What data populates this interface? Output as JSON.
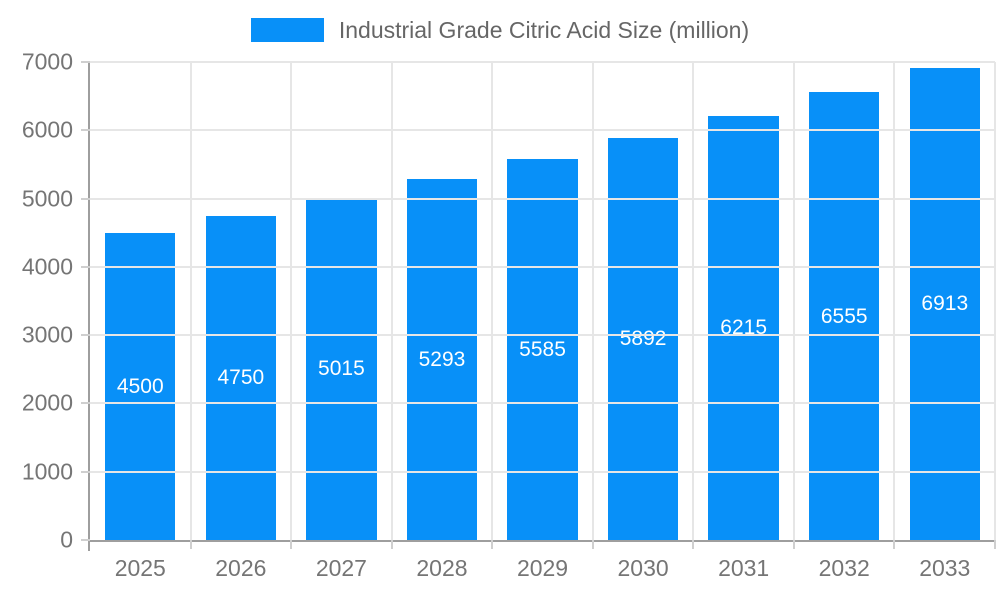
{
  "legend": {
    "label": "Industrial Grade Citric Acid Size (million)"
  },
  "colors": {
    "bar": "#0890f8",
    "bar_label": "#ffffff",
    "grid": "#e6e6e6",
    "axis": "#9e9e9e",
    "tick": "#cfcfcf",
    "tick_label": "#757575",
    "legend_text": "#666666"
  },
  "chart_data": {
    "type": "bar",
    "title": "Industrial Grade Citric Acid Size (million)",
    "categories": [
      "2025",
      "2026",
      "2027",
      "2028",
      "2029",
      "2030",
      "2031",
      "2032",
      "2033"
    ],
    "values": [
      4500,
      4750,
      5015,
      5293,
      5585,
      5892,
      6215,
      6555,
      6913
    ],
    "series": [
      {
        "name": "Industrial Grade Citric Acid Size (million)",
        "values": [
          4500,
          4750,
          5015,
          5293,
          5585,
          5892,
          6215,
          6555,
          6913
        ]
      }
    ],
    "xlabel": "",
    "ylabel": "",
    "ylim": [
      0,
      7000
    ],
    "y_ticks": [
      0,
      1000,
      2000,
      3000,
      4000,
      5000,
      6000,
      7000
    ],
    "grid": true,
    "legend_position": "top",
    "bar_value_labels_inside": true
  }
}
